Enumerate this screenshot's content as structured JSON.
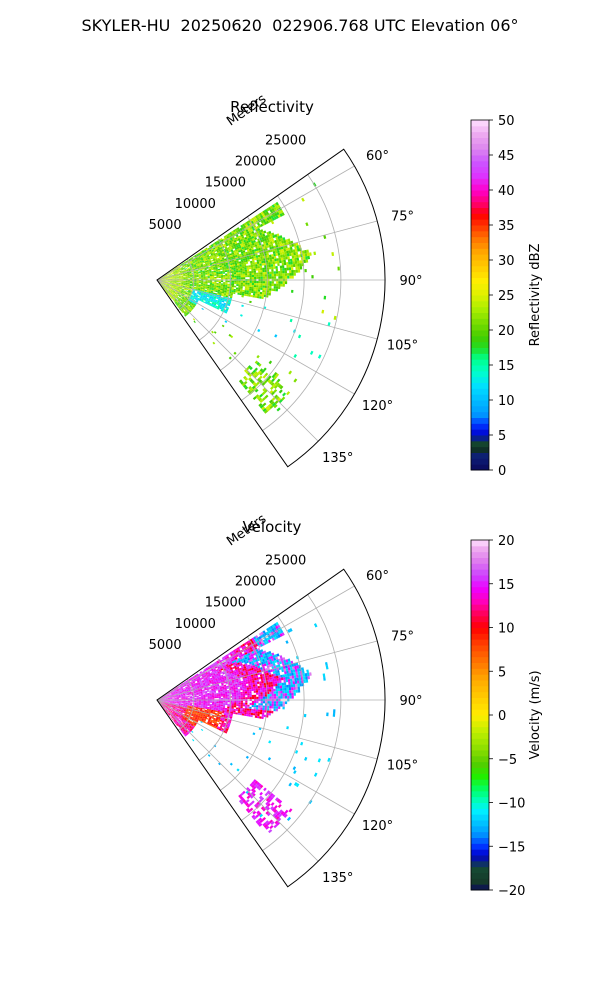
{
  "figure": {
    "title": "SKYLER-HU  20250620  022906.768 UTC Elevation 06°"
  },
  "chart_data": [
    {
      "type": "polar",
      "name": "reflectivity",
      "title": "Reflectivity",
      "radial_label": "Meters",
      "radial_ticks": [
        5000,
        10000,
        15000,
        20000,
        25000
      ],
      "radial_tick_labels": [
        "5000",
        "10000",
        "15000",
        "20000",
        "25000"
      ],
      "rlim": [
        0,
        31000
      ],
      "theta_range_deg": [
        55,
        145
      ],
      "theta_ticks": [
        60,
        75,
        90,
        105,
        120,
        135
      ],
      "theta_tick_labels": [
        "60°",
        "75°",
        "90°",
        "105°",
        "120°",
        "135°"
      ],
      "grid": true,
      "data_extent": {
        "theta_deg": [
          57,
          142
        ],
        "range_m": [
          0,
          25000
        ]
      },
      "dominant_values": "mostly 15–25 dBZ (green/yellow-green), lower 8–15 dBZ (cyan) to the southeast",
      "colorbar": {
        "label": "Reflectivity dBZ",
        "min": 0,
        "max": 50,
        "ticks": [
          0,
          5,
          10,
          15,
          20,
          25,
          30,
          35,
          40,
          45,
          50
        ],
        "tick_labels": [
          "0",
          "5",
          "10",
          "15",
          "20",
          "25",
          "30",
          "35",
          "40",
          "45",
          "50"
        ]
      }
    },
    {
      "type": "polar",
      "name": "velocity",
      "title": "Velocity",
      "radial_label": "Meters",
      "radial_ticks": [
        5000,
        10000,
        15000,
        20000,
        25000
      ],
      "radial_tick_labels": [
        "5000",
        "10000",
        "15000",
        "20000",
        "25000"
      ],
      "rlim": [
        0,
        31000
      ],
      "theta_range_deg": [
        55,
        145
      ],
      "theta_ticks": [
        60,
        75,
        90,
        105,
        120,
        135
      ],
      "theta_tick_labels": [
        "60°",
        "75°",
        "90°",
        "105°",
        "120°",
        "135°"
      ],
      "grid": true,
      "data_extent": {
        "theta_deg": [
          57,
          142
        ],
        "range_m": [
          0,
          25000
        ]
      },
      "dominant_values": "mostly 8–15 m/s (red/magenta), -12 to -10 m/s (cyan) on the northeastern edge",
      "colorbar": {
        "label": "Velocity (m/s)",
        "min": -20,
        "max": 20,
        "ticks": [
          -20,
          -15,
          -10,
          -5,
          0,
          5,
          10,
          15,
          20
        ],
        "tick_labels": [
          "−20",
          "−15",
          "−10",
          "−5",
          "0",
          "5",
          "10",
          "15",
          "20"
        ]
      }
    }
  ]
}
